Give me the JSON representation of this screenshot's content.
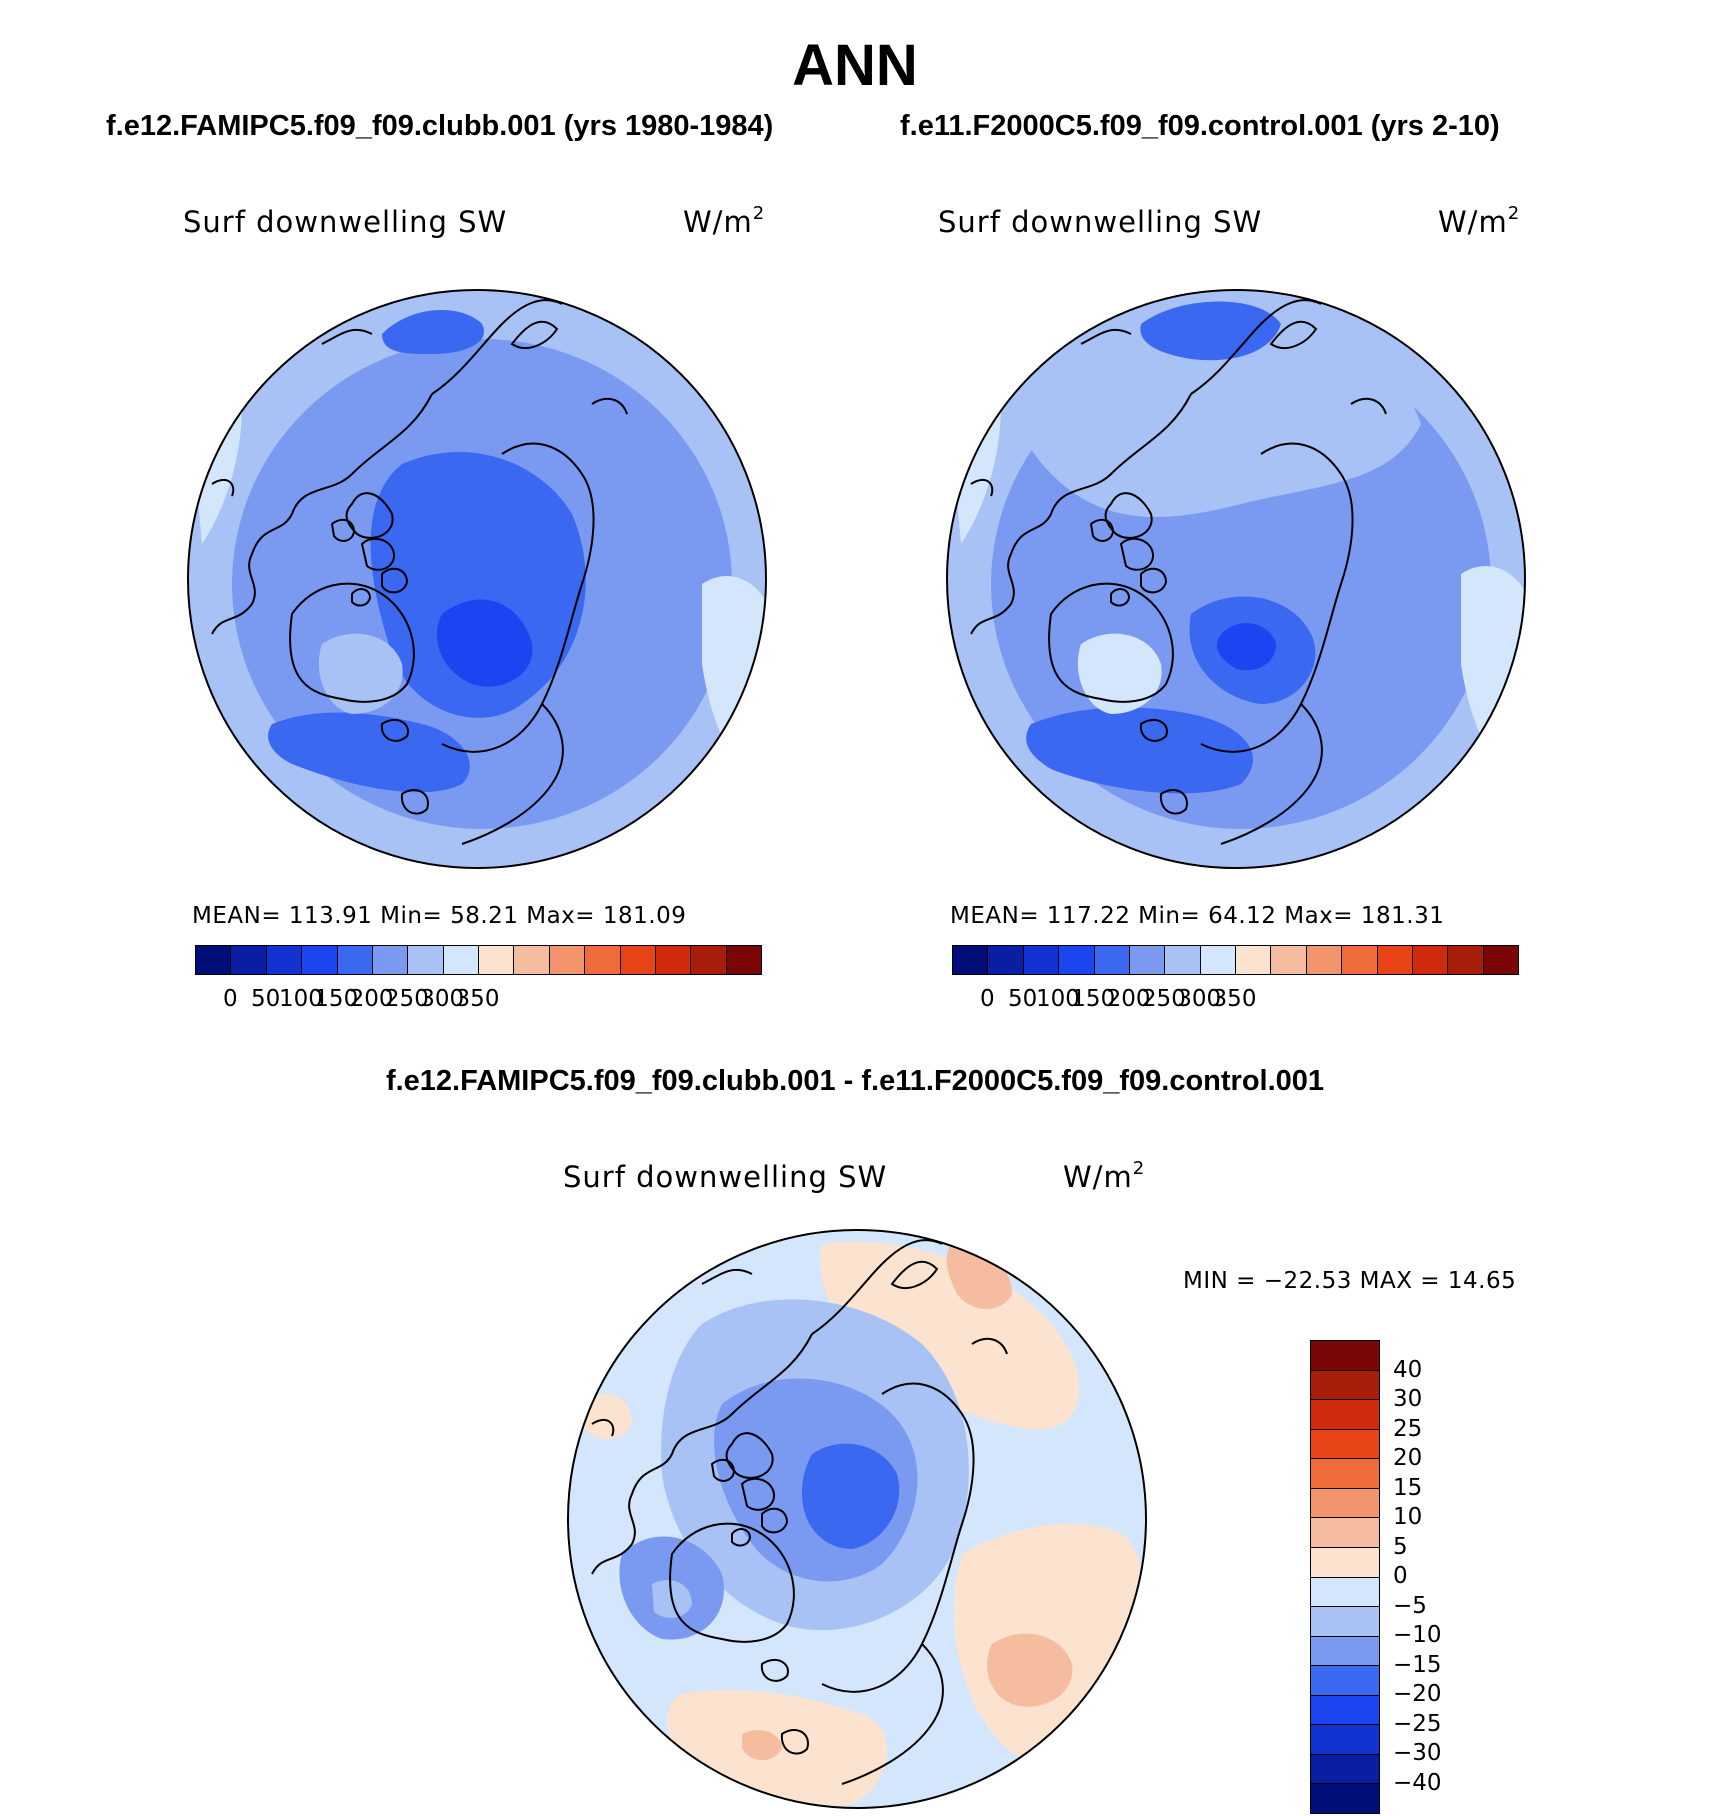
{
  "title": "ANN",
  "panels": {
    "left_title": "f.e12.FAMIPC5.f09_f09.clubb.001 (yrs 1980-1984)",
    "right_title": "f.e11.F2000C5.f09_f09.control.001 (yrs 2-10)",
    "diff_title": "f.e12.FAMIPC5.f09_f09.clubb.001 - f.e11.F2000C5.f09_f09.control.001"
  },
  "maps": [
    {
      "field": "Surf downwelling SW",
      "units": "W/m",
      "units_sup": "2",
      "stats": "MEAN= 113.91   Min=   58.21   Max= 181.09",
      "mean": 113.91,
      "min": 58.21,
      "max": 181.09
    },
    {
      "field": "Surf downwelling SW",
      "units": "W/m",
      "units_sup": "2",
      "stats": "MEAN= 117.22   Min=   64.12   Max= 181.31",
      "mean": 117.22,
      "min": 64.12,
      "max": 181.31
    },
    {
      "field": "Surf downwelling SW",
      "units": "W/m",
      "units_sup": "2",
      "stats": "MIN = −22.53 MAX =   14.65",
      "min": -22.53,
      "max": 14.65
    }
  ],
  "colorbar_abs": {
    "colors": [
      "#000e7a",
      "#0a1ea3",
      "#1232d2",
      "#1c44f0",
      "#3a68f0",
      "#7a9af2",
      "#a9c2f5",
      "#d4e6fb",
      "#fbe3cf",
      "#f6bca0",
      "#f2946c",
      "#f06a3a",
      "#e84418",
      "#d02b0c",
      "#a81c0a",
      "#7a0606"
    ],
    "labels": [
      "0",
      "50",
      "100",
      "150",
      "200",
      "250",
      "300",
      "350"
    ]
  },
  "colorbar_diff": {
    "colors": [
      "#000e7a",
      "#0a1ea3",
      "#1232d2",
      "#1c44f0",
      "#3a68f0",
      "#7a9af2",
      "#a9c2f5",
      "#d4e6fb",
      "#fbe3cf",
      "#f6bca0",
      "#f2946c",
      "#f06a3a",
      "#e84418",
      "#d02b0c",
      "#a81c0a",
      "#7a0606"
    ],
    "labels": [
      "40",
      "30",
      "25",
      "20",
      "15",
      "10",
      "5",
      "0",
      "−5",
      "−10",
      "−15",
      "−20",
      "−25",
      "−30",
      "−40"
    ]
  }
}
